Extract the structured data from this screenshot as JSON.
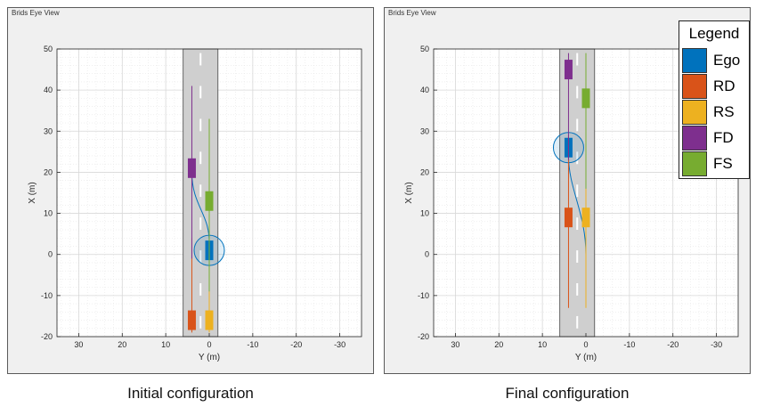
{
  "panels": [
    {
      "title": "Brids Eye View",
      "caption": "Initial configuration",
      "xlabel": "Y (m)",
      "ylabel": "X (m)",
      "x_ticks": [
        "30",
        "20",
        "10",
        "0",
        "-10",
        "-20",
        "-30"
      ],
      "y_ticks": [
        "50",
        "40",
        "30",
        "20",
        "10",
        "0",
        "-10",
        "-20"
      ],
      "vehicles": [
        {
          "id": "Ego",
          "x_m": 1,
          "y_m": 0,
          "color": "#0072BD",
          "sensor_circle": true
        },
        {
          "id": "RD",
          "x_m": -16,
          "y_m": 4,
          "color": "#D95319"
        },
        {
          "id": "RS",
          "x_m": -16,
          "y_m": 0,
          "color": "#EDB120"
        },
        {
          "id": "FD",
          "x_m": 21,
          "y_m": 4,
          "color": "#7E2F8E"
        },
        {
          "id": "FS",
          "x_m": 13,
          "y_m": 0,
          "color": "#77AC30"
        }
      ]
    },
    {
      "title": "Brids Eye View",
      "caption": "Final configuration",
      "xlabel": "Y (m)",
      "ylabel": "X (m)",
      "x_ticks": [
        "30",
        "20",
        "10",
        "0",
        "-10",
        "-20",
        "-30"
      ],
      "y_ticks": [
        "50",
        "40",
        "30",
        "20",
        "10",
        "0",
        "-10",
        "-20"
      ],
      "vehicles": [
        {
          "id": "Ego",
          "x_m": 26,
          "y_m": 4,
          "color": "#0072BD",
          "sensor_circle": true
        },
        {
          "id": "RD",
          "x_m": 9,
          "y_m": 4,
          "color": "#D95319"
        },
        {
          "id": "RS",
          "x_m": 9,
          "y_m": 0,
          "color": "#EDB120"
        },
        {
          "id": "FD",
          "x_m": 45,
          "y_m": 4,
          "color": "#7E2F8E"
        },
        {
          "id": "FS",
          "x_m": 38,
          "y_m": 0,
          "color": "#77AC30"
        }
      ]
    }
  ],
  "legend": {
    "title": "Legend",
    "items": [
      {
        "label": "Ego",
        "color": "#0072BD"
      },
      {
        "label": "RD",
        "color": "#D95319"
      },
      {
        "label": "RS",
        "color": "#EDB120"
      },
      {
        "label": "FD",
        "color": "#7E2F8E"
      },
      {
        "label": "FS",
        "color": "#77AC30"
      }
    ]
  }
}
